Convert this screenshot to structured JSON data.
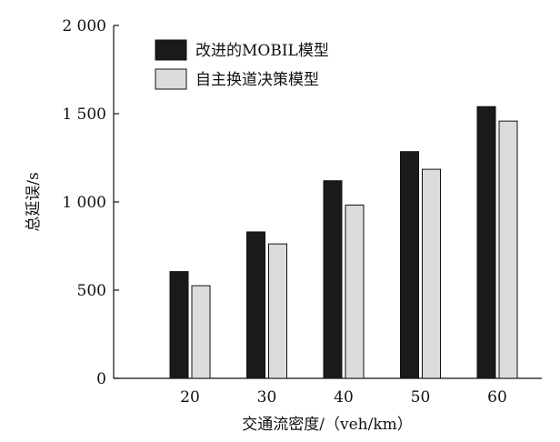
{
  "chart_data": {
    "type": "bar",
    "categories": [
      "20",
      "30",
      "40",
      "50",
      "60"
    ],
    "series": [
      {
        "name": "改进的MOBIL模型",
        "values": [
          605,
          830,
          1120,
          1285,
          1540
        ],
        "color": "#1a1a1a"
      },
      {
        "name": "自主换道决策模型",
        "values": [
          525,
          762,
          982,
          1185,
          1458
        ],
        "color": "#dcdcdc"
      }
    ],
    "xlabel": "交通流密度/（veh/km）",
    "ylabel": "总延误/s",
    "ylim": [
      0,
      2000
    ],
    "yticks": [
      0,
      500,
      1000,
      1500,
      2000
    ],
    "ytick_labels": [
      "0",
      "500",
      "1 000",
      "1 500",
      "2 000"
    ],
    "grid": false,
    "legend_position": "top-left"
  }
}
